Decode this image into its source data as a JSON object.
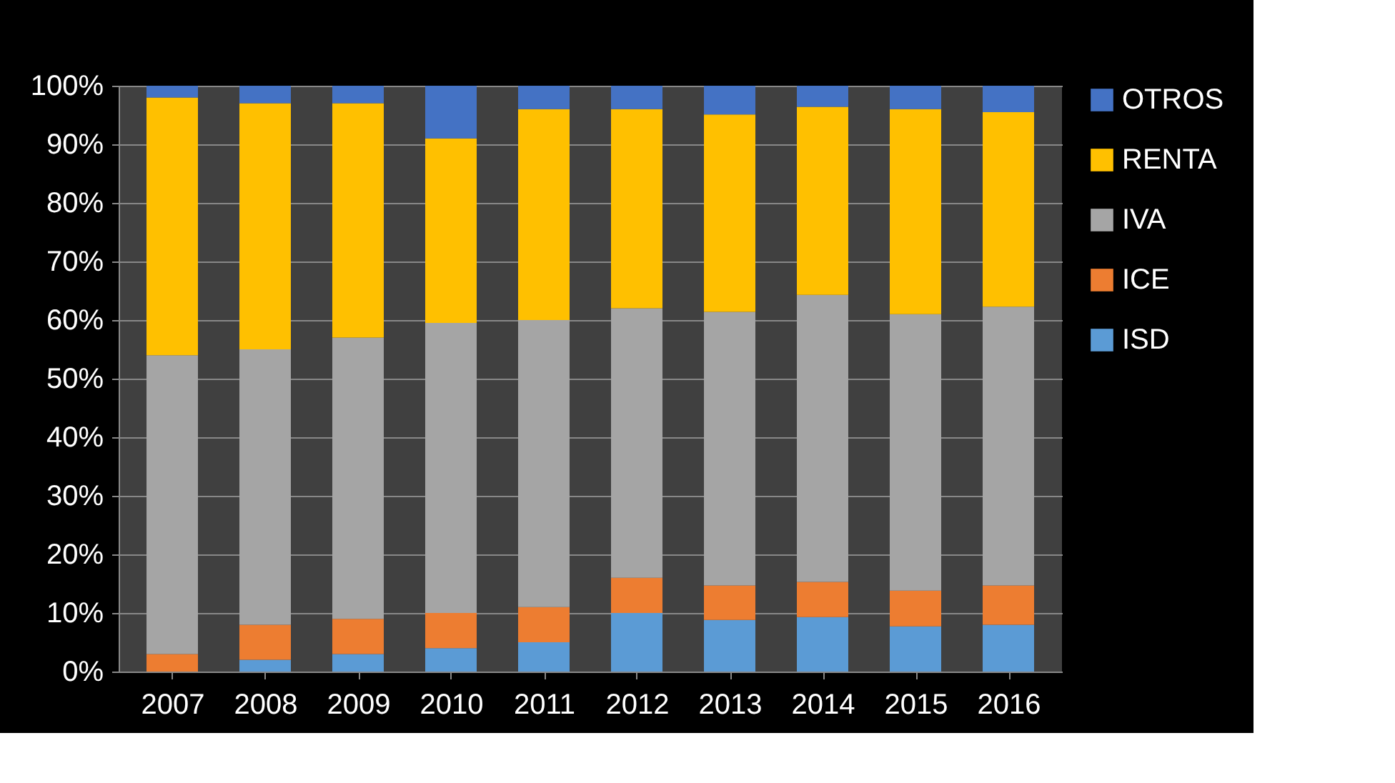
{
  "chart_data": {
    "type": "bar",
    "stacked": true,
    "categories": [
      "2007",
      "2008",
      "2009",
      "2010",
      "2011",
      "2012",
      "2013",
      "2014",
      "2015",
      "2016"
    ],
    "series": [
      {
        "name": "ISD",
        "color": "#5b9bd5",
        "values": [
          0,
          2,
          3,
          4,
          5,
          10,
          8.8,
          9.3,
          7.7,
          8
        ]
      },
      {
        "name": "ICE",
        "color": "#ed7d31",
        "values": [
          3,
          6,
          6,
          6,
          6,
          6,
          5.9,
          6,
          6.1,
          6.7
        ]
      },
      {
        "name": "IVA",
        "color": "#a5a5a5",
        "values": [
          51,
          47,
          48,
          49.5,
          49,
          46,
          46.7,
          49,
          47.2,
          47.6
        ]
      },
      {
        "name": "RENTA",
        "color": "#ffc000",
        "values": [
          44,
          42,
          40,
          31.5,
          36,
          34,
          33.7,
          32.1,
          35,
          33.2
        ]
      },
      {
        "name": "OTROS",
        "color": "#4472c4",
        "values": [
          2,
          3,
          3,
          9,
          4,
          4,
          4.9,
          3.6,
          4,
          4.5
        ]
      }
    ],
    "ylim": [
      0,
      100
    ],
    "yticks": [
      {
        "value": 0,
        "label": "0%"
      },
      {
        "value": 10,
        "label": "10%"
      },
      {
        "value": 20,
        "label": "20%"
      },
      {
        "value": 30,
        "label": "30%"
      },
      {
        "value": 40,
        "label": "40%"
      },
      {
        "value": 50,
        "label": "50%"
      },
      {
        "value": 60,
        "label": "60%"
      },
      {
        "value": 70,
        "label": "70%"
      },
      {
        "value": 80,
        "label": "80%"
      },
      {
        "value": 90,
        "label": "90%"
      },
      {
        "value": 100,
        "label": "100%"
      }
    ],
    "grid": "y",
    "legend": "right"
  }
}
